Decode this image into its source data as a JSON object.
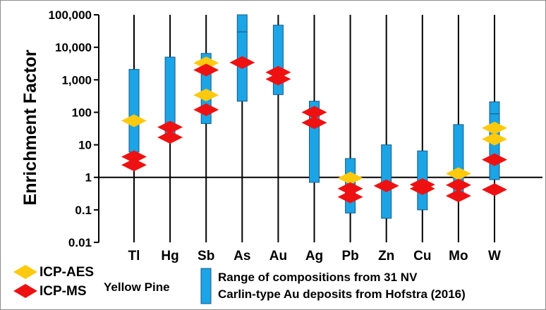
{
  "chart_data": {
    "type": "range-bar",
    "ylabel": "Enrichment Factor",
    "yscale": "log",
    "ylim": [
      0.01,
      100000
    ],
    "yticks": [
      {
        "value": 0.01,
        "label": "0.01"
      },
      {
        "value": 0.1,
        "label": "0.1"
      },
      {
        "value": 1,
        "label": "1"
      },
      {
        "value": 10,
        "label": "10"
      },
      {
        "value": 100,
        "label": "100"
      },
      {
        "value": 1000,
        "label": "1,000"
      },
      {
        "value": 10000,
        "label": "10,000"
      },
      {
        "value": 100000,
        "label": "100,000"
      }
    ],
    "reference_line": 1,
    "categories": [
      "Tl",
      "Hg",
      "Sb",
      "As",
      "Au",
      "Ag",
      "Pb",
      "Zn",
      "Cu",
      "Mo",
      "W"
    ],
    "range_series": {
      "color": "#1ba4e6",
      "ranges": [
        [
          [
            6,
            2100
          ]
        ],
        [
          [
            15,
            5000
          ]
        ],
        [
          [
            45,
            6500
          ]
        ],
        [
          [
            220,
            30000
          ],
          [
            30000,
            100000
          ]
        ],
        [
          [
            350,
            48000
          ]
        ],
        [
          [
            0.7,
            220
          ]
        ],
        [
          [
            0.08,
            3.8
          ]
        ],
        [
          [
            0.055,
            10
          ]
        ],
        [
          [
            0.1,
            6.5
          ]
        ],
        [
          [
            0.25,
            42
          ]
        ],
        [
          [
            0.85,
            90
          ],
          [
            90,
            210
          ]
        ]
      ]
    },
    "series": [
      {
        "name": "ICP-AES",
        "color": "#ffc90e",
        "points": [
          {
            "category": "Tl",
            "value": 55
          },
          {
            "category": "Sb",
            "value": 3300
          },
          {
            "category": "Sb",
            "value": 340
          },
          {
            "category": "Pb",
            "value": 0.95
          },
          {
            "category": "Mo",
            "value": 1.3
          },
          {
            "category": "W",
            "value": 33
          },
          {
            "category": "W",
            "value": 15
          }
        ]
      },
      {
        "name": "ICP-MS",
        "color": "#ee1111",
        "points": [
          {
            "category": "Tl",
            "value": 4.3
          },
          {
            "category": "Tl",
            "value": 2.4
          },
          {
            "category": "Hg",
            "value": 35
          },
          {
            "category": "Hg",
            "value": 17
          },
          {
            "category": "Sb",
            "value": 2000
          },
          {
            "category": "Sb",
            "value": 120
          },
          {
            "category": "As",
            "value": 3400
          },
          {
            "category": "Au",
            "value": 1700
          },
          {
            "category": "Au",
            "value": 1050
          },
          {
            "category": "Ag",
            "value": 100
          },
          {
            "category": "Ag",
            "value": 48
          },
          {
            "category": "Pb",
            "value": 0.45
          },
          {
            "category": "Pb",
            "value": 0.25
          },
          {
            "category": "Zn",
            "value": 0.55
          },
          {
            "category": "Cu",
            "value": 0.6
          },
          {
            "category": "Cu",
            "value": 0.45
          },
          {
            "category": "Mo",
            "value": 0.58
          },
          {
            "category": "Mo",
            "value": 0.27
          },
          {
            "category": "W",
            "value": 3.5
          },
          {
            "category": "W",
            "value": 0.42
          }
        ]
      }
    ]
  },
  "legend": {
    "icp_aes": "ICP-AES",
    "icp_ms": "ICP-MS",
    "group_label": "Yellow Pine",
    "range_line1": "Range of compositions from 31 NV",
    "range_line2": "Carlin-type Au deposits from Hofstra (2016)",
    "aes_color": "#ffc90e",
    "ms_color": "#ee1111",
    "range_color": "#1ba4e6"
  }
}
